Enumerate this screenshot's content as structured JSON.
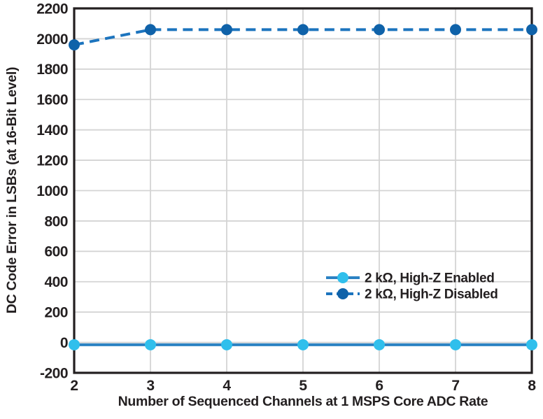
{
  "chart_data": {
    "type": "line",
    "title": "",
    "xlabel": "Number of Sequenced Channels at 1 MSPS Core ADC Rate",
    "ylabel": "DC Code Error in LSBs (at 16-Bit Level)",
    "x": [
      2,
      3,
      4,
      5,
      6,
      7,
      8
    ],
    "xticks": [
      2,
      3,
      4,
      5,
      6,
      7,
      8
    ],
    "yticks": [
      -200,
      0,
      200,
      400,
      600,
      800,
      1000,
      1200,
      1400,
      1600,
      1800,
      2000,
      2200
    ],
    "xlim": [
      2,
      8
    ],
    "ylim": [
      -200,
      2200
    ],
    "grid": true,
    "legend_position": "inside lower right",
    "series": [
      {
        "name": "2 kΩ, High-Z Enabled",
        "style": "solid",
        "line_color": "#2B82C3",
        "marker_color": "#30BFEC",
        "marker": "circle",
        "values": [
          -15,
          -15,
          -15,
          -15,
          -15,
          -15,
          -15
        ]
      },
      {
        "name": "2 kΩ, High-Z Disabled",
        "style": "dashed",
        "line_color": "#1C74BE",
        "marker_color": "#0F62A9",
        "marker": "circle",
        "values": [
          1960,
          2060,
          2060,
          2060,
          2060,
          2060,
          2060
        ]
      }
    ],
    "colors": {
      "axis_frame": "#231F20",
      "gridline": "#D4D4D4",
      "text": "#231F20",
      "background": "#FFFFFF"
    }
  }
}
